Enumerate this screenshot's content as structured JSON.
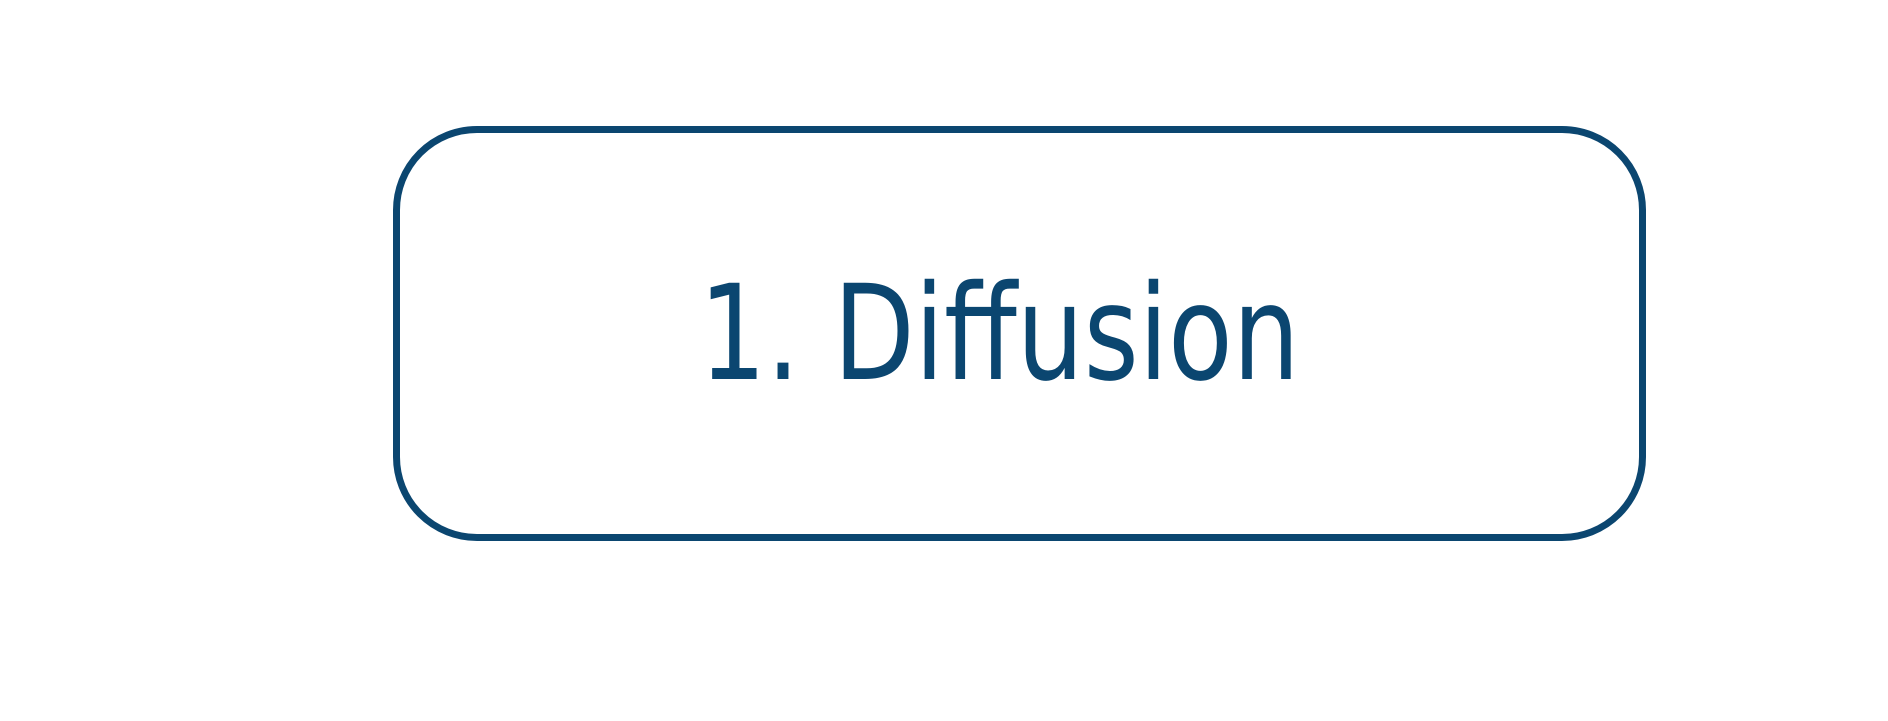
{
  "box": {
    "label": "1. Diffusion"
  },
  "colors": {
    "stroke": "#0b4670",
    "text": "#0b4670",
    "background": "#ffffff"
  }
}
